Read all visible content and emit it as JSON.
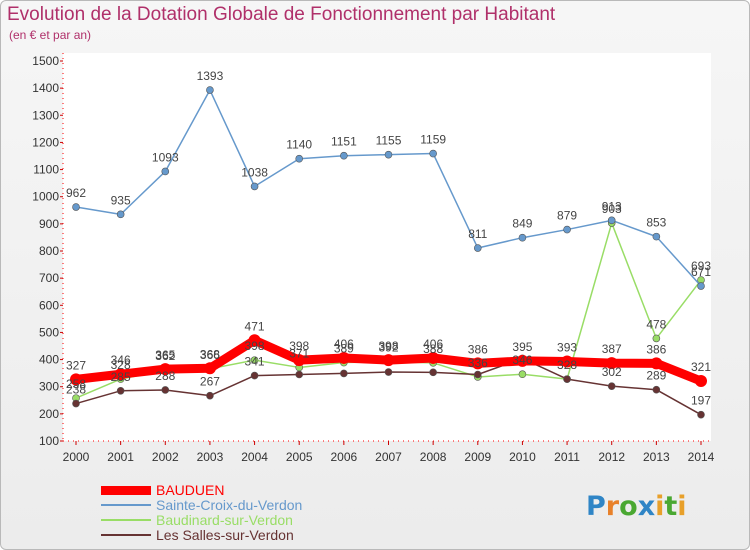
{
  "header": {
    "title": "Evolution de la Dotation Globale de Fonctionnement par Habitant",
    "subtitle": "(en € et par an)"
  },
  "brand": {
    "p1": "P",
    "p2": "r",
    "p3": "o",
    "p4": "x",
    "p5": "i",
    "p6": "t",
    "p7": "i"
  },
  "chart_data": {
    "type": "line",
    "title": "Evolution de la Dotation Globale de Fonctionnement par Habitant",
    "subtitle": "(en € et par an)",
    "xlabel": "",
    "ylabel": "",
    "x": [
      "2000",
      "2001",
      "2002",
      "2003",
      "2004",
      "2005",
      "2006",
      "2007",
      "2008",
      "2009",
      "2010",
      "2011",
      "2012",
      "2013",
      "2014"
    ],
    "ylim": [
      100,
      1500
    ],
    "yticks": [
      100,
      200,
      300,
      400,
      500,
      600,
      700,
      800,
      900,
      1000,
      1100,
      1200,
      1300,
      1400,
      1500
    ],
    "grid": false,
    "legend_position": "bottom-left",
    "series": [
      {
        "name": "BAUDUEN",
        "color": "#ff0000",
        "values": [
          327,
          346,
          365,
          368,
          471,
          398,
          406,
          398,
          406,
          386,
          395,
          393,
          387,
          386,
          321
        ],
        "labels": [
          "327",
          "346",
          "365",
          "368",
          "471",
          "398",
          "406",
          "398",
          "406",
          "386",
          "395",
          "393",
          "387",
          "386",
          "321"
        ]
      },
      {
        "name": "Sainte-Croix-du-Verdon",
        "color": "#6699cc",
        "values": [
          962,
          935,
          1093,
          1393,
          1038,
          1140,
          1151,
          1155,
          1159,
          811,
          849,
          879,
          913,
          853,
          671
        ],
        "labels": [
          "962",
          "935",
          "1093",
          "1393",
          "1038",
          "1140",
          "1151",
          "1155",
          "1159",
          "811",
          "849",
          "879",
          "913",
          "853",
          "671"
        ]
      },
      {
        "name": "Baudinard-sur-Verdon",
        "color": "#99dd66",
        "values": [
          258,
          328,
          362,
          366,
          398,
          371,
          389,
          392,
          388,
          336,
          346,
          328,
          903,
          478,
          693
        ],
        "labels": [
          "258",
          "328",
          "362",
          "366",
          "398",
          "371",
          "389",
          "392",
          "388",
          "336",
          "346",
          "328",
          "903",
          "478",
          "693"
        ]
      },
      {
        "name": "Les Salles-sur-Verdon",
        "color": "#663333",
        "values": [
          238,
          285,
          288,
          267,
          341,
          345,
          349,
          354,
          353,
          345,
          404,
          328,
          302,
          289,
          197
        ],
        "labels": [
          "238",
          "285",
          "288",
          "267",
          "341",
          "",
          "",
          "",
          "",
          "",
          "",
          "",
          "302",
          "289",
          "197"
        ]
      }
    ]
  }
}
